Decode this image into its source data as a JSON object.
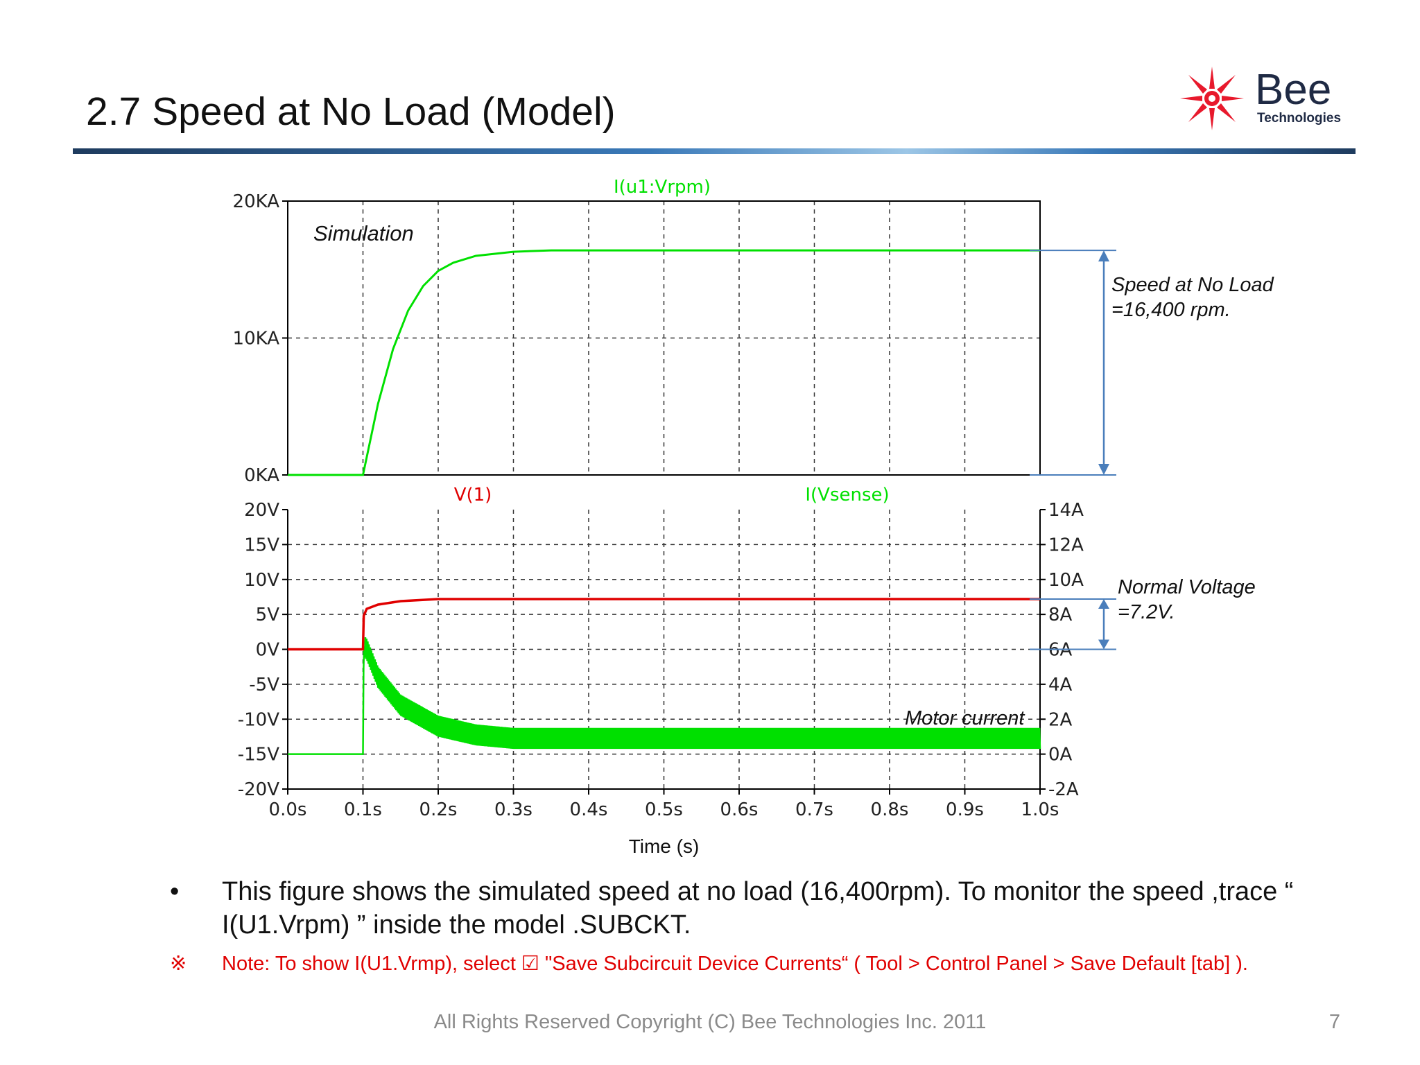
{
  "slide": {
    "title": "2.7 Speed at No Load (Model)",
    "logo": {
      "brand": "Bee",
      "sub": "Technologies",
      "accent": "#e8192c"
    },
    "bullet_mark": "•",
    "bullet_text": "This figure shows the simulated speed at no load (16,400rpm). To monitor the speed ,trace “ I(U1.Vrpm) ” inside the model .SUBCKT.",
    "note_mark": "※",
    "note_text": "Note: To show I(U1.Vrmp), select ☑ \"Save Subcircuit Device Currents“ ( Tool > Control Panel > Save Default [tab] ).",
    "footer": "All Rights Reserved Copyright (C) Bee Technologies Inc. 2011",
    "page_number": "7"
  },
  "chart_data": [
    {
      "type": "line",
      "series": [
        {
          "name": "I(u1:Vrpm)",
          "color": "#00e000",
          "x": [
            0,
            0.1,
            0.12,
            0.14,
            0.16,
            0.18,
            0.2,
            0.22,
            0.25,
            0.3,
            0.35,
            0.4,
            0.5,
            1.0
          ],
          "y": [
            0,
            0,
            5200,
            9200,
            12000,
            13800,
            14900,
            15500,
            16000,
            16300,
            16400,
            16400,
            16400,
            16400
          ]
        }
      ],
      "xlim": [
        0,
        1.0
      ],
      "ylim": [
        0,
        20000
      ],
      "yticks": [
        "0KA",
        "10KA",
        "20KA"
      ],
      "xticks": [
        "0.0s",
        "0.1s",
        "0.2s",
        "0.3s",
        "0.4s",
        "0.5s",
        "0.6s",
        "0.7s",
        "0.8s",
        "0.9s",
        "1.0s"
      ],
      "grid": true,
      "annotations": {
        "plot_label": "Simulation",
        "measure_line1": "Speed at No Load",
        "measure_line2": "=16,400 rpm.",
        "measure_from": 0,
        "measure_to": 16400
      }
    },
    {
      "type": "line",
      "series": [
        {
          "name": "V(1)",
          "axis": "left",
          "color": "#e00000",
          "x": [
            0,
            0.1,
            0.101,
            0.105,
            0.12,
            0.15,
            0.2,
            1.0
          ],
          "y": [
            0,
            0,
            4.8,
            5.8,
            6.4,
            6.9,
            7.2,
            7.2
          ]
        },
        {
          "name": "I(Vsense)",
          "axis": "right",
          "color": "#00e000",
          "x": [
            0,
            0.1,
            0.101,
            0.105,
            0.12,
            0.15,
            0.2,
            0.25,
            0.3,
            1.0
          ],
          "y": [
            0,
            0,
            6.2,
            6.0,
            4.4,
            2.8,
            1.6,
            1.1,
            0.9,
            0.9
          ],
          "ripple_amplitude": 0.6
        }
      ],
      "xlim": [
        0,
        1.0
      ],
      "ylim_left": [
        -20,
        20
      ],
      "ylim_right": [
        -2,
        14
      ],
      "yticks_left": [
        "20V",
        "15V",
        "10V",
        "5V",
        "0V",
        "-5V",
        "-10V",
        "-15V",
        "-20V"
      ],
      "yticks_right": [
        "14A",
        "12A",
        "10A",
        "8A",
        "6A",
        "4A",
        "2A",
        "0A",
        "-2A"
      ],
      "xticks": [
        "0.0s",
        "0.1s",
        "0.2s",
        "0.3s",
        "0.4s",
        "0.5s",
        "0.6s",
        "0.7s",
        "0.8s",
        "0.9s",
        "1.0s"
      ],
      "xlabel": "Time (s)",
      "grid": true,
      "annotations": {
        "current_label": "Motor current",
        "measure_line1": "Normal Voltage",
        "measure_line2": "=7.2V.",
        "measure_from": 0,
        "measure_to": 7.2
      }
    }
  ]
}
